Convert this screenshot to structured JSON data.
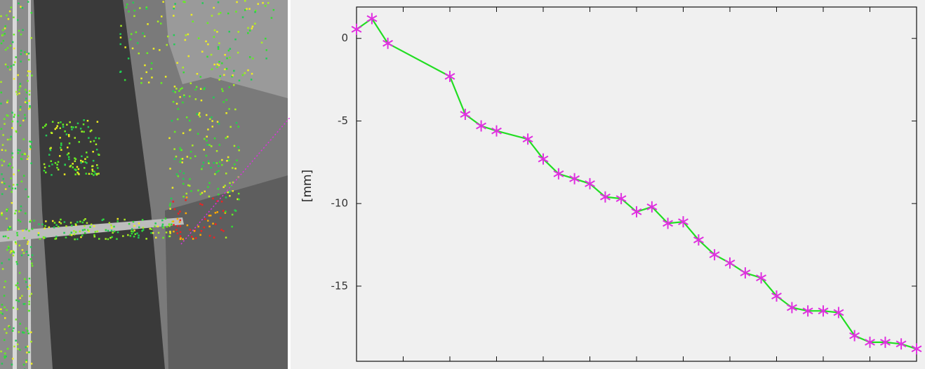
{
  "chart_data": {
    "type": "line",
    "ylabel": "[mm]",
    "x": [
      0,
      0.33,
      0.67,
      2,
      2.33,
      2.67,
      3,
      3.67,
      4,
      4.33,
      4.67,
      5,
      5.33,
      5.67,
      6,
      6.33,
      6.67,
      7,
      7.33,
      7.67,
      8,
      8.33,
      8.67,
      9,
      9.33,
      9.67,
      10,
      10.33,
      10.67,
      11,
      11.33,
      11.67,
      12
    ],
    "series": [
      {
        "color": "#22dd22",
        "marker_color": "#e030e0",
        "values": [
          0.55,
          1.2,
          -0.3,
          -2.3,
          -4.6,
          -5.3,
          -5.6,
          -6.1,
          -7.3,
          -8.2,
          -8.5,
          -8.8,
          -9.6,
          -9.7,
          -10.5,
          -10.2,
          -11.2,
          -11.1,
          -12.2,
          -13.1,
          -13.6,
          -14.2,
          -14.5,
          -15.6,
          -16.3,
          -16.5,
          -16.5,
          -16.6,
          -18.0,
          -18.4,
          -18.4,
          -18.5,
          -18.8
        ]
      }
    ],
    "xlim": [
      0,
      12
    ],
    "ylim": [
      -19.55,
      1.9
    ],
    "xticks": [
      1,
      2,
      3,
      4,
      5,
      6,
      7,
      8,
      9,
      10,
      11
    ],
    "yticks": [
      0,
      -5,
      -10,
      -15
    ]
  }
}
